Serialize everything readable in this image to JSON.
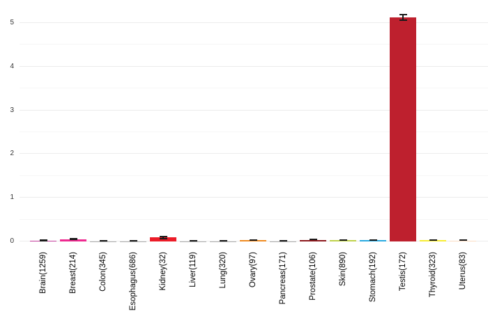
{
  "chart_data": {
    "type": "bar",
    "title": "",
    "xlabel": "",
    "ylabel": "",
    "categories": [
      "Brain(1259)",
      "Breast(214)",
      "Colon(345)",
      "Esophagus(686)",
      "Kidney(32)",
      "Liver(119)",
      "Lung(320)",
      "Ovary(97)",
      "Pancreas(171)",
      "Prostate(106)",
      "Skin(890)",
      "Stomach(192)",
      "Testis(172)",
      "Thyroid(323)",
      "Uterus(83)"
    ],
    "values": [
      0.02,
      0.05,
      0.008,
      0.008,
      0.09,
      0.006,
      0.008,
      0.03,
      0.008,
      0.04,
      0.025,
      0.03,
      5.13,
      0.025,
      0.02
    ],
    "errors": [
      0.012,
      0.025,
      0.012,
      0.012,
      0.045,
      0.012,
      0.012,
      0.015,
      0.012,
      0.015,
      0.012,
      0.015,
      0.08,
      0.012,
      0.01
    ],
    "bar_colors": [
      "#c23d9b",
      "#ee2a90",
      "#b0b0b0",
      "#b0b0b0",
      "#ec1c28",
      "#b0b0b0",
      "#b0b0b0",
      "#ef8b20",
      "#b0b0b0",
      "#8c181d",
      "#bfd24a",
      "#29aae1",
      "#be202e",
      "#f7ec33",
      "#fadcc3"
    ],
    "error_bar_color": "#1a1a1a",
    "ylim": [
      0,
      5.5
    ],
    "yticks": [
      "0",
      "1",
      "2",
      "3",
      "4",
      "5"
    ],
    "minor_yticks": [
      0.5,
      1.5,
      2.5,
      3.5,
      4.5
    ],
    "grid": "on",
    "legend": "none",
    "background_color": "#ffffff",
    "gridline_major_color": "#ececec",
    "gridline_minor_color": "#f6f6f6",
    "ytick_label_color": "#333333",
    "xtick_label_color": "#000000"
  }
}
